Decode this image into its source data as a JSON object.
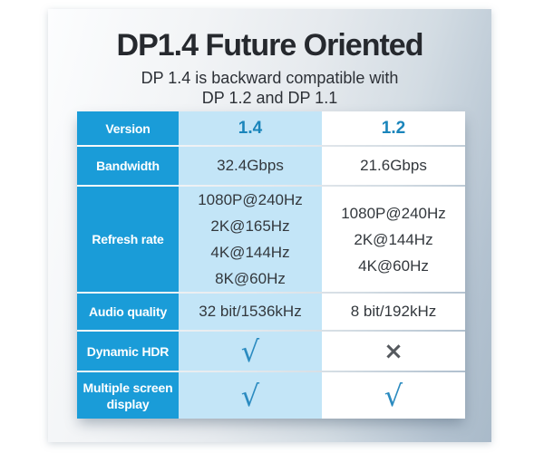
{
  "header": {
    "title": "DP1.4 Future Oriented",
    "subtitle_line1": "DP 1.4 is backward compatible with",
    "subtitle_line2": "DP 1.2 and DP 1.1"
  },
  "table": {
    "rows": [
      {
        "label": "Version",
        "cells": [
          {
            "text": "1.4",
            "style": "version"
          },
          {
            "text": "1.2",
            "style": "version"
          }
        ]
      },
      {
        "label": "Bandwidth",
        "cells": [
          {
            "text": "32.4Gbps"
          },
          {
            "text": "21.6Gbps"
          }
        ]
      },
      {
        "label": "Refresh rate",
        "cells": [
          {
            "lines": [
              "1080P@240Hz",
              "2K@165Hz",
              "4K@144Hz",
              "8K@60Hz"
            ]
          },
          {
            "lines": [
              "1080P@240Hz",
              "2K@144Hz",
              "4K@60Hz"
            ]
          }
        ]
      },
      {
        "label": "Audio quality",
        "cells": [
          {
            "text": "32 bit/1536kHz"
          },
          {
            "text": "8 bit/192kHz"
          }
        ]
      },
      {
        "label": "Dynamic HDR",
        "cells": [
          {
            "mark": "check"
          },
          {
            "mark": "cross"
          }
        ]
      },
      {
        "label": "Multiple screen\ndisplay",
        "cells": [
          {
            "mark": "check"
          },
          {
            "mark": "check"
          }
        ]
      }
    ]
  },
  "symbols": {
    "check": "√",
    "cross": "×"
  },
  "colors": {
    "header-blue": "#1a9cd8",
    "light-blue": "#c3e5f7",
    "version-blue": "#1a85bb",
    "check-blue": "#2b8bc0",
    "cross-gray": "#55595e",
    "title-text": "#26292e",
    "subtitle-text": "#2c3036",
    "value-text": "#33383d"
  }
}
